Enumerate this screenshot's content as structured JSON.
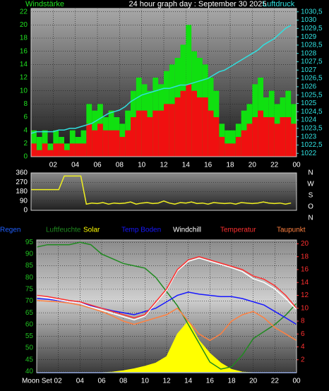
{
  "chart_data": [
    {
      "type": "bar",
      "title": "24 hour graph day : September 30 2025",
      "ylabel": "Windstärke",
      "y2label": "Luftdruck",
      "yaxis_color": "#20e020",
      "y2axis_color": "#30e0e0",
      "grid": true,
      "x": [
        0,
        0.5,
        1,
        1.5,
        2,
        2.5,
        3,
        3.5,
        4,
        4.5,
        5,
        5.5,
        6,
        6.5,
        7,
        7.5,
        8,
        8.5,
        9,
        9.5,
        10,
        10.5,
        11,
        11.5,
        12,
        12.5,
        13,
        13.5,
        14,
        14.5,
        15,
        15.5,
        16,
        16.5,
        17,
        17.5,
        18,
        18.5,
        19,
        19.5,
        20,
        20.5,
        21,
        21.5,
        22,
        22.5,
        23,
        23.5
      ],
      "xlim": [
        0,
        24
      ],
      "xticks": [
        {
          "value": 2,
          "label": "02"
        },
        {
          "value": 4,
          "label": "04"
        },
        {
          "value": 6,
          "label": "06"
        },
        {
          "value": 8,
          "label": "08"
        },
        10,
        12,
        14,
        16,
        18,
        20,
        22,
        {
          "value": 24,
          "label": "00"
        }
      ],
      "ylim": [
        0,
        22.5
      ],
      "yticks": [
        0,
        2,
        4,
        6,
        8,
        10,
        12,
        14,
        16,
        18,
        20,
        22
      ],
      "y2lim": [
        1021.8,
        1030.7
      ],
      "y2ticks": [
        1022,
        {
          "value": 1022.5,
          "label": "1022,5"
        },
        1023,
        {
          "value": 1023.5,
          "label": "1023,5"
        },
        1024,
        {
          "value": 1024.5,
          "label": "1024,5"
        },
        1025,
        {
          "value": 1025.5,
          "label": "1025,5"
        },
        1026,
        {
          "value": 1026.5,
          "label": "1026,5"
        },
        1027,
        {
          "value": 1027.5,
          "label": "1027,5"
        },
        1028,
        {
          "value": 1028.5,
          "label": "1028,5"
        },
        1029,
        {
          "value": 1029.5,
          "label": "1029,5"
        },
        1030,
        {
          "value": 1030.5,
          "label": "1030,5"
        }
      ],
      "series": [
        {
          "type": "bar",
          "color": "#10e010",
          "axis": "y",
          "values": [
            4,
            3,
            4,
            2,
            4,
            3,
            2,
            4,
            3,
            4,
            8,
            7,
            8,
            6,
            7,
            6,
            5,
            7,
            10,
            12,
            11,
            10,
            12,
            11,
            13,
            14,
            15,
            17,
            20,
            16,
            15,
            14,
            12,
            10,
            5,
            4,
            4,
            5,
            7,
            8,
            11,
            12,
            9,
            10,
            8,
            9,
            10,
            8
          ]
        },
        {
          "type": "bar",
          "color": "#f01010",
          "axis": "y",
          "values": [
            2,
            1,
            2,
            1,
            2,
            2,
            1,
            2,
            2,
            2,
            5,
            4,
            5,
            4,
            4,
            4,
            3,
            4,
            6,
            7,
            7,
            6,
            7,
            7,
            8,
            8,
            9,
            10,
            11,
            10,
            9,
            9,
            7,
            6,
            3,
            2,
            2,
            3,
            4,
            5,
            6,
            7,
            6,
            6,
            5,
            6,
            6,
            5
          ]
        },
        {
          "type": "line",
          "color": "#30e0e0",
          "axis": "y2",
          "values": [
            1023.2,
            1023.3,
            1023.3,
            1023.3,
            1023.3,
            1023.4,
            1023.4,
            1023.5,
            1023.5,
            1023.6,
            1023.7,
            1023.8,
            1024.0,
            1024.2,
            1024.4,
            1024.5,
            1024.6,
            1024.8,
            1025.1,
            1025.3,
            1025.5,
            1025.6,
            1025.7,
            1025.8,
            1025.9,
            1025.9,
            1026.0,
            1026.1,
            1026.1,
            1026.2,
            1026.3,
            1026.4,
            1026.5,
            1026.7,
            1026.9,
            1027.0,
            1027.2,
            1027.4,
            1027.6,
            1027.8,
            1028.0,
            1028.2,
            1028.5,
            1028.7,
            1028.9,
            1029.2,
            1029.5,
            1029.7
          ]
        }
      ]
    },
    {
      "type": "line",
      "yaxis_color": "#ffffff",
      "grid": true,
      "direction_labels": [
        "N",
        "W",
        "S",
        "O",
        "N"
      ],
      "x": [
        0,
        0.5,
        1,
        1.5,
        2,
        2.5,
        3,
        3.5,
        4,
        4.5,
        5,
        5.5,
        6,
        6.5,
        7,
        7.5,
        8,
        8.5,
        9,
        9.5,
        10,
        10.5,
        11,
        11.5,
        12,
        12.5,
        13,
        13.5,
        14,
        14.5,
        15,
        15.5,
        16,
        16.5,
        17,
        17.5,
        18,
        18.5,
        19,
        19.5,
        20,
        20.5,
        21,
        21.5,
        22,
        22.5,
        23,
        23.5
      ],
      "xlim": [
        0,
        24
      ],
      "ylim": [
        0,
        360
      ],
      "yticks": [
        0,
        90,
        180,
        270,
        360
      ],
      "series": [
        {
          "type": "line",
          "color": "#f0f020",
          "axis": "y",
          "values": [
            200,
            200,
            200,
            200,
            200,
            200,
            330,
            330,
            330,
            330,
            60,
            70,
            65,
            75,
            60,
            70,
            65,
            70,
            80,
            60,
            70,
            75,
            65,
            70,
            90,
            70,
            60,
            75,
            70,
            80,
            65,
            70,
            60,
            75,
            70,
            65,
            70,
            60,
            75,
            70,
            65,
            70,
            80,
            70,
            65,
            70,
            60,
            70
          ]
        }
      ]
    },
    {
      "type": "line",
      "yaxis_color": "#20c020",
      "y2axis_color": "#ff3030",
      "grid": true,
      "x": [
        0,
        1,
        2,
        3,
        4,
        5,
        6,
        7,
        8,
        9,
        10,
        11,
        12,
        13,
        14,
        15,
        16,
        17,
        18,
        19,
        20,
        21,
        22,
        23,
        24
      ],
      "xlim": [
        0,
        24
      ],
      "xticks": [
        {
          "value": 2,
          "label": "Moon Set 02"
        },
        {
          "value": 4,
          "label": "04"
        },
        {
          "value": 6,
          "label": "06"
        },
        {
          "value": 8,
          "label": "08"
        },
        10,
        12,
        14,
        16,
        18,
        20,
        22,
        {
          "value": 24,
          "label": "00"
        }
      ],
      "ylim": [
        39.5,
        96
      ],
      "yticks": [
        40,
        45,
        50,
        55,
        60,
        65,
        70,
        75,
        80,
        85,
        90,
        95
      ],
      "y2lim": [
        0,
        20.6
      ],
      "y2ticks": [
        2,
        4,
        6,
        8,
        10,
        12,
        14,
        16,
        18,
        20
      ],
      "series": [
        {
          "name": "Regen",
          "type": "line",
          "color": "#2060ff",
          "axis": "y2",
          "values": [
            0,
            0,
            0,
            0,
            0,
            0,
            0,
            0,
            0,
            0,
            0,
            0,
            0,
            0,
            0,
            0,
            0,
            0,
            0,
            0,
            0,
            0,
            0,
            0,
            0
          ]
        },
        {
          "name": "Luftfeuchte",
          "type": "line",
          "color": "#208a20",
          "axis": "y",
          "values": [
            93,
            94,
            94,
            94,
            95,
            94,
            90,
            88,
            86,
            85,
            84,
            80,
            74,
            68,
            60,
            52,
            44,
            41,
            42,
            47,
            54,
            57,
            60,
            64,
            69
          ]
        },
        {
          "name": "Solar",
          "type": "area",
          "color": "#ffff00",
          "axis": "y2",
          "values": [
            0,
            0,
            0,
            0,
            0,
            0,
            0,
            0.1,
            0.3,
            0.6,
            1,
            1.5,
            2.5,
            6,
            8,
            5,
            3,
            1.5,
            0.5,
            0.1,
            0,
            0,
            0,
            0,
            0
          ]
        },
        {
          "name": "Temp Boden",
          "type": "line",
          "color": "#1818ff",
          "axis": "y2",
          "values": [
            11.5,
            11.4,
            11.2,
            11,
            10.8,
            10.4,
            10,
            9.6,
            9.3,
            9,
            9.5,
            10,
            11,
            12,
            12.5,
            12.2,
            12,
            11.8,
            11.8,
            11.5,
            11,
            10.5,
            9.5,
            8.5,
            7.5
          ]
        },
        {
          "name": "Windchill",
          "type": "line",
          "color": "#ffffff",
          "axis": "y2",
          "values": [
            11.9,
            11.6,
            11.3,
            11,
            10.8,
            10.2,
            9.7,
            9.2,
            8.7,
            8.2,
            8.8,
            10.8,
            12.8,
            15.8,
            17.3,
            17.8,
            17.3,
            16.8,
            16.3,
            15.7,
            14.6,
            14,
            13,
            11.5,
            9.8
          ]
        },
        {
          "name": "Temperatur",
          "type": "line",
          "color": "#ff3030",
          "axis": "y2",
          "values": [
            12,
            11.8,
            11.5,
            11.2,
            11,
            10.5,
            10,
            9.5,
            9,
            8.5,
            9,
            11,
            13,
            16,
            17.5,
            18,
            17.5,
            17,
            16.5,
            16,
            15,
            14.5,
            13.5,
            12,
            10
          ]
        },
        {
          "name": "Taupunkt",
          "type": "line",
          "color": "#ff8040",
          "axis": "y2",
          "values": [
            11.2,
            11.1,
            11,
            10.8,
            10.5,
            10,
            9.5,
            8.8,
            8,
            7.5,
            8,
            8.5,
            9,
            10,
            8,
            6,
            5,
            6,
            8,
            9,
            9.5,
            8.5,
            7,
            6,
            5
          ]
        }
      ]
    }
  ]
}
